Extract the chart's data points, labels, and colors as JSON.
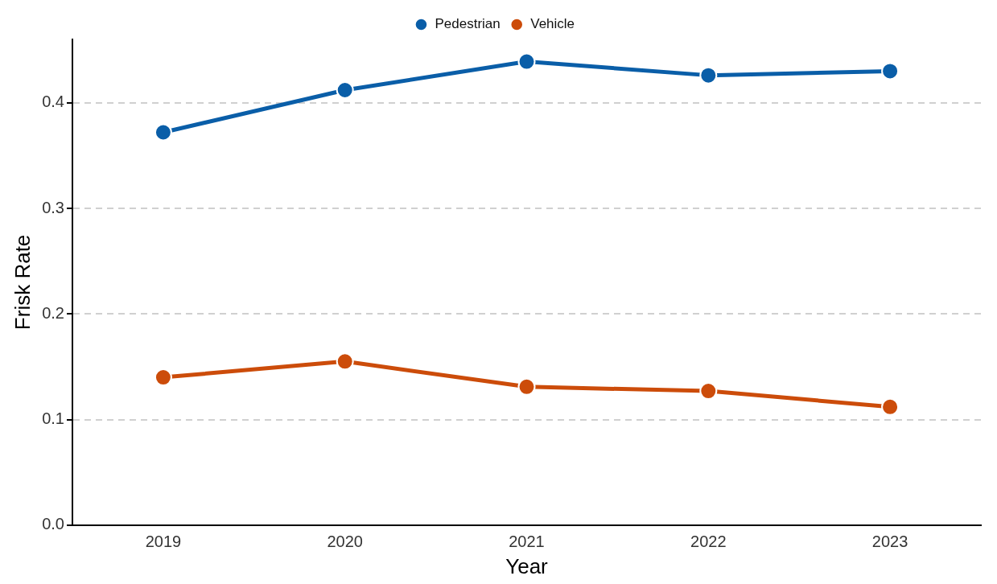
{
  "chart_data": {
    "type": "line",
    "xlabel": "Year",
    "ylabel": "Frisk Rate",
    "categories": [
      "2019",
      "2020",
      "2021",
      "2022",
      "2023"
    ],
    "series": [
      {
        "name": "Pedestrian",
        "color": "#0a5ea8",
        "values": [
          0.372,
          0.412,
          0.439,
          0.426,
          0.43
        ]
      },
      {
        "name": "Vehicle",
        "color": "#cc4c0a",
        "values": [
          0.14,
          0.155,
          0.131,
          0.127,
          0.112
        ]
      }
    ],
    "ylim": [
      0,
      0.46
    ],
    "yticks": [
      {
        "value": 0,
        "label": "0.0"
      },
      0.1,
      0.2,
      0.3,
      0.4
    ],
    "grid": "y",
    "legend": "top",
    "marker": "circle",
    "line_style": "solid"
  }
}
